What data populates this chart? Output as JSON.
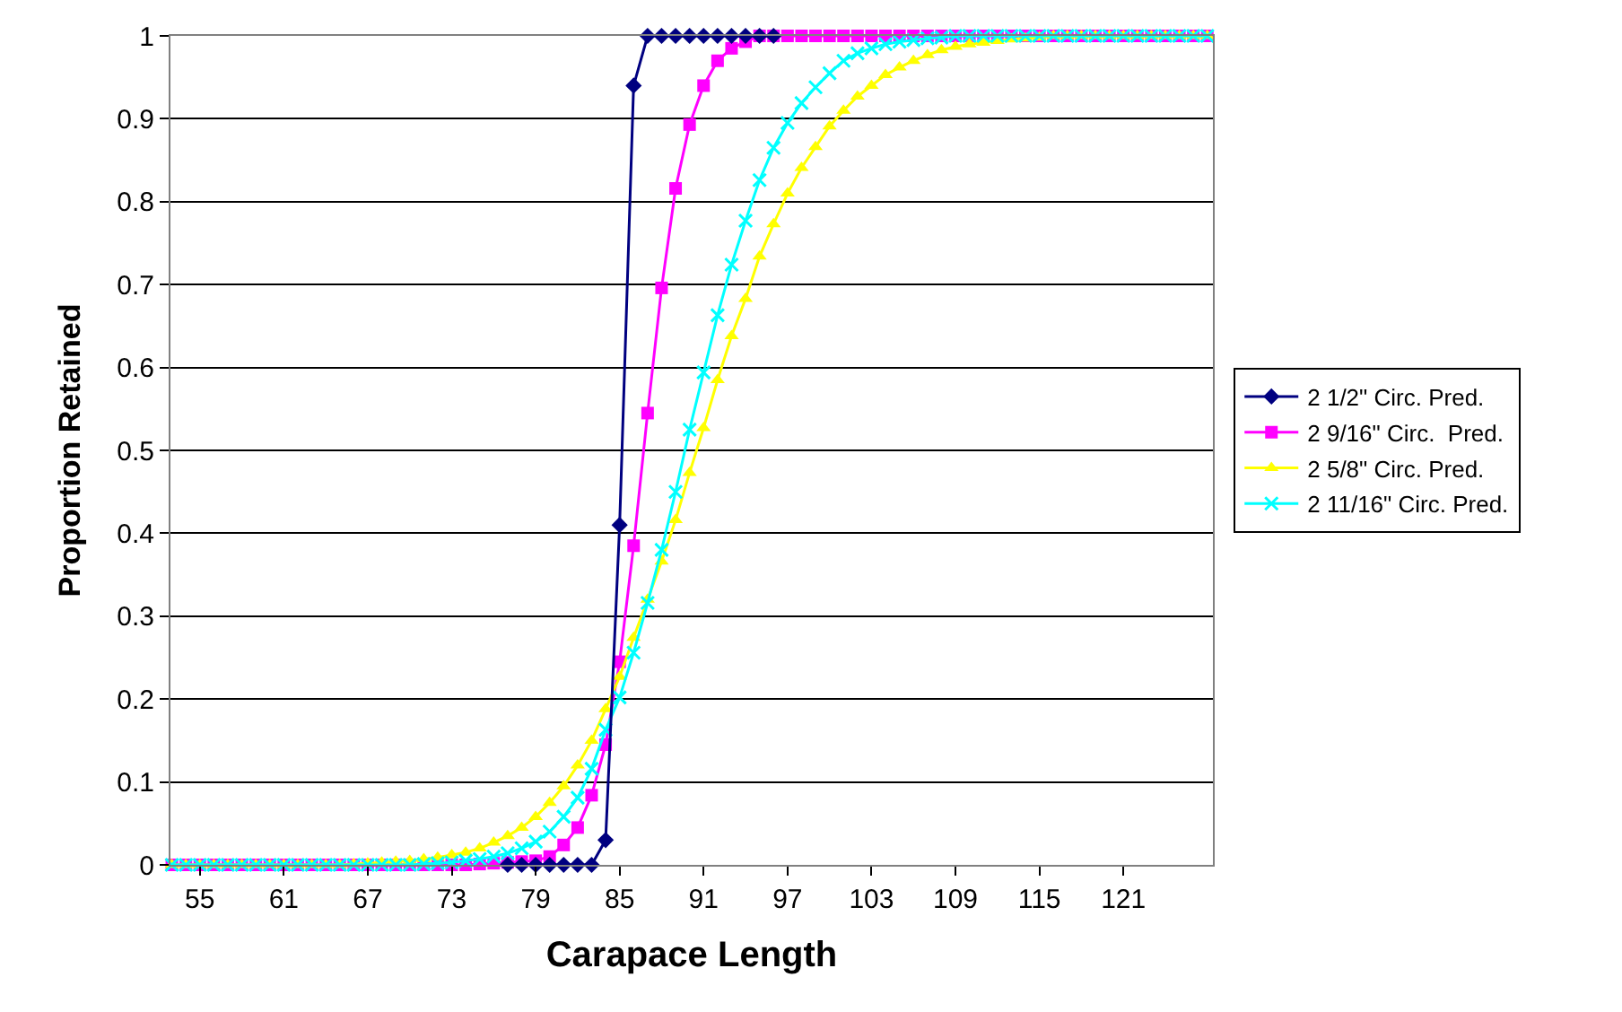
{
  "chart_data": {
    "type": "line",
    "xlabel": "Carapace Length",
    "ylabel": "Proportion Retained",
    "x": [
      53,
      54,
      55,
      56,
      57,
      58,
      59,
      60,
      61,
      62,
      63,
      64,
      65,
      66,
      67,
      68,
      69,
      70,
      71,
      72,
      73,
      74,
      75,
      76,
      77,
      78,
      79,
      80,
      81,
      82,
      83,
      84,
      85,
      86,
      87,
      88,
      89,
      90,
      91,
      92,
      93,
      94,
      95,
      96,
      97,
      98,
      99,
      100,
      101,
      102,
      103,
      104,
      105,
      106,
      107,
      108,
      109,
      110,
      111,
      112,
      113,
      114,
      115,
      116,
      117,
      118,
      119,
      120,
      121,
      122,
      123,
      124,
      125,
      126,
      127
    ],
    "xlim": [
      52.9,
      127.4
    ],
    "xticks": [
      55,
      61,
      67,
      73,
      79,
      85,
      91,
      97,
      103,
      109,
      115,
      121
    ],
    "ylim": [
      0,
      1
    ],
    "yticks": [
      0,
      0.1,
      0.2,
      0.3,
      0.4,
      0.5,
      0.6,
      0.7,
      0.8,
      0.9,
      1
    ],
    "grid": "y",
    "legend": "right",
    "series": [
      {
        "name": "2 1/2\" Circ. Pred.",
        "color": "#000080",
        "marker": "diamond",
        "values": [
          null,
          null,
          null,
          null,
          null,
          null,
          null,
          null,
          null,
          null,
          null,
          null,
          null,
          null,
          null,
          null,
          null,
          null,
          null,
          null,
          null,
          null,
          null,
          null,
          0,
          0,
          0,
          0,
          0,
          0,
          0,
          0.03,
          0.41,
          0.94,
          1,
          1,
          1,
          1,
          1,
          1,
          1,
          1,
          1,
          1,
          null,
          null,
          null,
          null,
          null,
          null,
          null,
          null,
          null,
          null,
          null,
          null,
          null,
          null,
          null,
          null,
          null,
          null,
          null,
          null,
          null,
          null,
          null,
          null,
          null,
          null,
          null,
          null,
          null,
          null,
          null
        ]
      },
      {
        "name": "2 9/16\" Circ.  Pred.",
        "color": "#ff00ff",
        "marker": "square",
        "values": [
          0,
          0,
          0,
          0,
          0,
          0,
          0,
          0,
          0,
          0,
          0,
          0,
          0,
          0,
          0,
          0,
          0,
          0,
          0,
          0,
          0,
          0,
          0.001,
          0.002,
          0.003,
          0.004,
          0.005,
          0.01,
          0.024,
          0.045,
          0.084,
          0.145,
          0.245,
          0.385,
          0.545,
          0.696,
          0.816,
          0.893,
          0.94,
          0.97,
          0.985,
          0.993,
          1,
          1,
          1,
          1,
          1,
          1,
          1,
          1,
          1,
          1,
          1,
          1,
          1,
          1,
          1,
          1,
          1,
          1,
          1,
          1,
          1,
          1,
          1,
          1,
          1,
          1,
          1,
          1,
          1,
          1,
          1,
          1,
          1
        ]
      },
      {
        "name": "2 5/8\" Circ. Pred.",
        "color": "#ffff00",
        "marker": "triangle",
        "values": [
          0,
          0,
          0,
          0,
          0,
          0,
          0,
          0,
          0,
          0,
          0,
          0,
          0,
          0.001,
          0.002,
          0.003,
          0.004,
          0.005,
          0.007,
          0.009,
          0.012,
          0.015,
          0.02,
          0.027,
          0.035,
          0.045,
          0.058,
          0.075,
          0.095,
          0.12,
          0.15,
          0.188,
          0.227,
          0.274,
          0.32,
          0.366,
          0.416,
          0.473,
          0.527,
          0.585,
          0.638,
          0.683,
          0.734,
          0.773,
          0.81,
          0.841,
          0.866,
          0.891,
          0.91,
          0.927,
          0.94,
          0.953,
          0.962,
          0.97,
          0.977,
          0.983,
          0.987,
          0.99,
          0.992,
          0.994,
          0.996,
          0.997,
          0.998,
          1,
          1,
          1,
          1,
          1,
          1,
          1,
          1,
          1,
          1,
          1,
          1
        ]
      },
      {
        "name": "2 11/16\" Circ. Pred.",
        "color": "#00ffff",
        "marker": "cross",
        "values": [
          0,
          0,
          0,
          0,
          0,
          0,
          0,
          0,
          0,
          0,
          0,
          0,
          0,
          0,
          0,
          0,
          0,
          0,
          0.001,
          0.002,
          0.003,
          0.005,
          0.007,
          0.01,
          0.014,
          0.02,
          0.028,
          0.04,
          0.058,
          0.081,
          0.116,
          0.163,
          0.202,
          0.256,
          0.316,
          0.38,
          0.45,
          0.525,
          0.594,
          0.663,
          0.724,
          0.777,
          0.826,
          0.865,
          0.895,
          0.919,
          0.938,
          0.955,
          0.97,
          0.979,
          0.985,
          0.99,
          0.993,
          0.995,
          0.997,
          0.998,
          1,
          1,
          1,
          1,
          1,
          1,
          1,
          1,
          1,
          1,
          1,
          1,
          1,
          1,
          1,
          1,
          1,
          1,
          1
        ]
      }
    ]
  }
}
